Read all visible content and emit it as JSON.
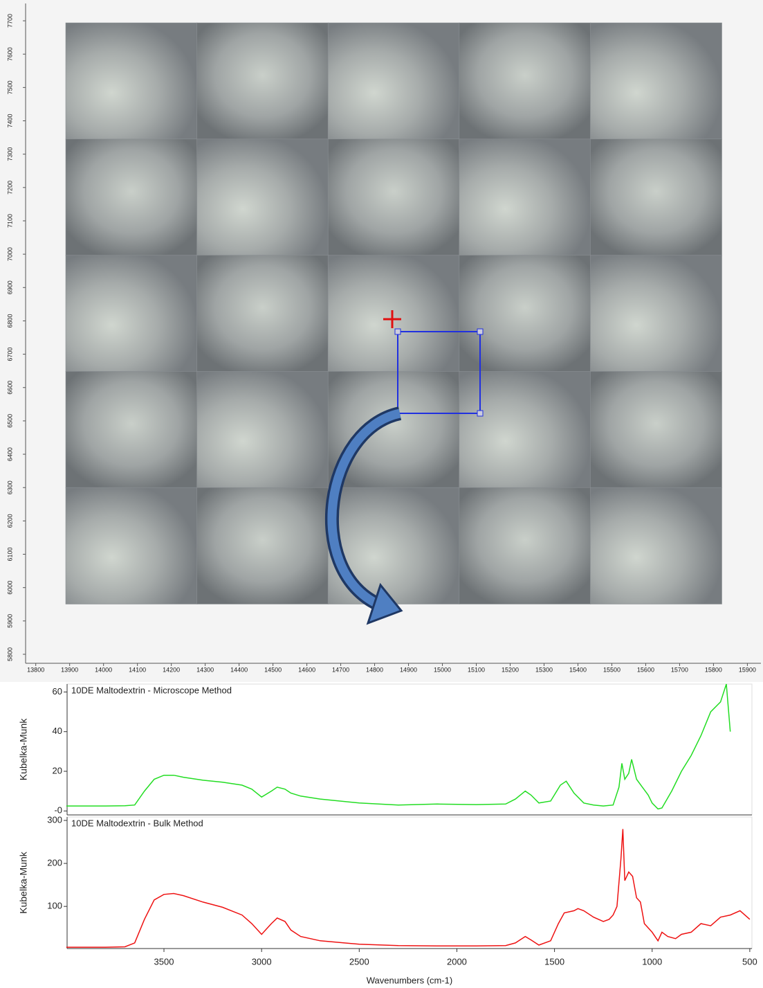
{
  "chart_data": [
    {
      "type": "image",
      "xlim": [
        13770,
        15940
      ],
      "xticks": [
        13800,
        13900,
        14000,
        14100,
        14200,
        14300,
        14400,
        14500,
        14600,
        14700,
        14800,
        14900,
        15000,
        15100,
        15200,
        15300,
        15400,
        15500,
        15600,
        15700,
        15800,
        15900
      ],
      "ylim": [
        5773,
        7752
      ],
      "yticks": [
        5800,
        5900,
        6000,
        6100,
        6200,
        6300,
        6400,
        6500,
        6600,
        6700,
        6800,
        6900,
        7000,
        7100,
        7200,
        7300,
        7400,
        7500,
        7600,
        7700
      ]
    },
    {
      "type": "line",
      "title": "10DE Maltodextrin - Microscope Method",
      "ylabel": "Kubelka-Munk",
      "xlim": [
        3996,
        489
      ],
      "ylim": [
        -2,
        64
      ],
      "yticks": [
        {
          "value": 0,
          "label": "-0"
        },
        20,
        40,
        60
      ],
      "x": [
        4000,
        3900,
        3800,
        3700,
        3650,
        3600,
        3550,
        3500,
        3450,
        3400,
        3300,
        3200,
        3100,
        3050,
        3000,
        2950,
        2920,
        2880,
        2850,
        2800,
        2700,
        2500,
        2300,
        2100,
        1900,
        1750,
        1700,
        1650,
        1620,
        1580,
        1520,
        1470,
        1440,
        1400,
        1350,
        1300,
        1250,
        1200,
        1170,
        1155,
        1140,
        1120,
        1105,
        1080,
        1050,
        1020,
        1000,
        970,
        950,
        900,
        850,
        800,
        750,
        700,
        650,
        620,
        600
      ],
      "series": [
        {
          "color": "#22dd22",
          "values": [
            2.5,
            2.5,
            2.5,
            2.6,
            3,
            10,
            16,
            18,
            18,
            17,
            15.5,
            14.5,
            13,
            11,
            7,
            10,
            12,
            11,
            9,
            7.5,
            6,
            4,
            3,
            3.5,
            3.2,
            3.5,
            6,
            10,
            8,
            4,
            5,
            13,
            15,
            9,
            4,
            3,
            2.5,
            3,
            12,
            24,
            16,
            19,
            26,
            16,
            12,
            8,
            4,
            1,
            1.5,
            10,
            20,
            28,
            38,
            50,
            55,
            64,
            40
          ]
        }
      ]
    },
    {
      "type": "line",
      "title": "10DE Maltodextrin - Bulk Method",
      "ylabel": "Kubelka-Munk",
      "xlabel": "Wavenumbers (cm-1)",
      "xlim": [
        3996,
        489
      ],
      "ylim": [
        2,
        308
      ],
      "xticks": [
        3500,
        3000,
        2500,
        2000,
        1500,
        1000,
        500
      ],
      "yticks": [
        100,
        200,
        300
      ],
      "x": [
        4000,
        3900,
        3800,
        3700,
        3650,
        3600,
        3550,
        3500,
        3450,
        3400,
        3300,
        3200,
        3100,
        3050,
        3000,
        2950,
        2920,
        2880,
        2850,
        2800,
        2700,
        2500,
        2300,
        2100,
        1900,
        1750,
        1700,
        1650,
        1620,
        1580,
        1520,
        1480,
        1450,
        1400,
        1380,
        1350,
        1300,
        1250,
        1220,
        1200,
        1180,
        1160,
        1150,
        1140,
        1120,
        1100,
        1080,
        1060,
        1040,
        1000,
        970,
        950,
        920,
        880,
        850,
        800,
        750,
        700,
        650,
        600,
        550,
        500
      ],
      "series": [
        {
          "color": "#ee1111",
          "values": [
            5,
            5,
            5,
            6,
            15,
            70,
            115,
            128,
            130,
            125,
            110,
            98,
            80,
            60,
            35,
            60,
            73,
            65,
            45,
            30,
            20,
            12,
            9,
            8,
            8,
            9,
            15,
            30,
            22,
            10,
            20,
            60,
            85,
            90,
            95,
            90,
            75,
            65,
            70,
            80,
            100,
            210,
            280,
            160,
            180,
            170,
            120,
            110,
            60,
            40,
            20,
            40,
            30,
            25,
            35,
            40,
            60,
            55,
            75,
            80,
            90,
            70
          ]
        }
      ]
    }
  ]
}
